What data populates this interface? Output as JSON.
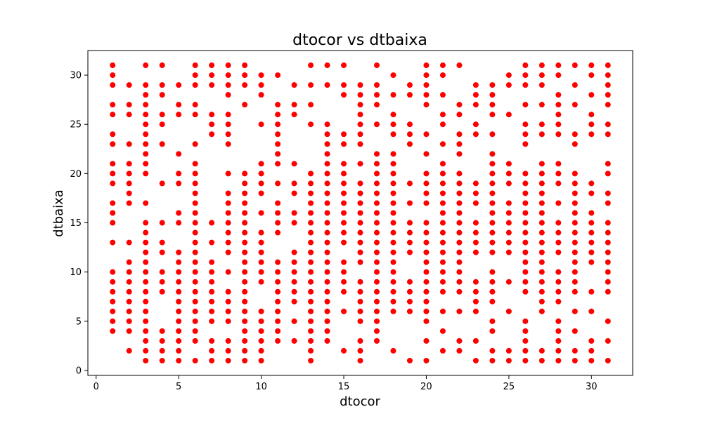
{
  "chart_data": {
    "type": "scatter",
    "title": "dtocor vs dtbaixa",
    "xlabel": "dtocor",
    "ylabel": "dtbaixa",
    "xlim": [
      -0.5,
      32.5
    ],
    "ylim": [
      -0.5,
      32.5
    ],
    "xticks": [
      0,
      5,
      10,
      15,
      20,
      25,
      30
    ],
    "yticks": [
      0,
      5,
      10,
      15,
      20,
      25,
      30
    ],
    "marker_color": "#ff0000",
    "grid": false,
    "points_by_x": {
      "1": [
        4,
        5,
        6,
        7,
        8,
        9,
        10,
        13,
        15,
        16,
        17,
        19,
        20,
        21,
        23,
        24,
        26,
        27,
        29,
        30,
        31
      ],
      "2": [
        2,
        4,
        5,
        6,
        7,
        8,
        9,
        10,
        11,
        13,
        17,
        18,
        19,
        20,
        21,
        23,
        26,
        27,
        29
      ],
      "3": [
        1,
        2,
        3,
        4,
        5,
        6,
        7,
        8,
        9,
        10,
        11,
        12,
        13,
        14,
        15,
        17,
        20,
        21,
        22,
        23,
        24,
        25,
        26,
        27,
        28,
        29,
        31
      ],
      "4": [
        1,
        2,
        3,
        4,
        8,
        9,
        10,
        12,
        13,
        15,
        19,
        23,
        25,
        26,
        28,
        29,
        31
      ],
      "5": [
        1,
        2,
        3,
        4,
        5,
        6,
        7,
        8,
        9,
        10,
        11,
        12,
        15,
        16,
        19,
        20,
        22,
        26,
        27,
        29
      ],
      "6": [
        1,
        3,
        4,
        5,
        6,
        7,
        8,
        9,
        10,
        11,
        12,
        13,
        14,
        15,
        16,
        17,
        18,
        19,
        20,
        21,
        23,
        26,
        27,
        29,
        30,
        31
      ],
      "7": [
        1,
        2,
        3,
        5,
        6,
        7,
        8,
        9,
        10,
        11,
        13,
        15,
        24,
        25,
        26,
        29,
        30,
        31
      ],
      "8": [
        1,
        2,
        3,
        5,
        6,
        7,
        8,
        10,
        12,
        13,
        14,
        15,
        16,
        17,
        18,
        20,
        23,
        24,
        25,
        26,
        28,
        29,
        30,
        31
      ],
      "9": [
        1,
        2,
        3,
        4,
        5,
        6,
        7,
        8,
        9,
        10,
        11,
        12,
        13,
        14,
        15,
        16,
        17,
        18,
        19,
        20,
        27,
        29,
        30,
        31
      ],
      "10": [
        1,
        2,
        3,
        4,
        5,
        6,
        9,
        10,
        11,
        12,
        13,
        14,
        16,
        18,
        19,
        20,
        21,
        25,
        28,
        29,
        30
      ],
      "11": [
        3,
        4,
        5,
        6,
        7,
        8,
        9,
        10,
        11,
        14,
        15,
        16,
        17,
        19,
        21,
        22,
        23,
        24,
        25,
        26,
        27,
        30
      ],
      "12": [
        3,
        5,
        7,
        8,
        9,
        10,
        11,
        12,
        15,
        16,
        18,
        19,
        21,
        26,
        27,
        29
      ],
      "13": [
        1,
        2,
        3,
        4,
        5,
        6,
        7,
        8,
        9,
        10,
        11,
        12,
        13,
        14,
        15,
        16,
        17,
        18,
        19,
        20,
        25,
        27,
        29,
        31
      ],
      "14": [
        3,
        4,
        5,
        6,
        7,
        8,
        9,
        10,
        11,
        12,
        13,
        14,
        15,
        16,
        17,
        18,
        19,
        20,
        21,
        22,
        23,
        24,
        25,
        29,
        31
      ],
      "15": [
        2,
        6,
        8,
        9,
        10,
        11,
        13,
        14,
        15,
        16,
        17,
        18,
        19,
        20,
        21,
        23,
        24,
        28,
        29,
        31
      ],
      "16": [
        1,
        2,
        3,
        5,
        6,
        7,
        8,
        9,
        11,
        12,
        13,
        14,
        15,
        16,
        17,
        18,
        19,
        21,
        23,
        24,
        25,
        26,
        27,
        28,
        29
      ],
      "17": [
        3,
        4,
        5,
        6,
        7,
        8,
        9,
        10,
        11,
        12,
        13,
        14,
        15,
        16,
        17,
        18,
        19,
        20,
        21,
        22,
        25,
        27,
        28,
        29,
        31
      ],
      "18": [
        2,
        6,
        7,
        8,
        9,
        10,
        11,
        12,
        13,
        14,
        15,
        16,
        17,
        18,
        19,
        20,
        21,
        22,
        24,
        25,
        26,
        28,
        30
      ],
      "19": [
        1,
        6,
        7,
        8,
        9,
        12,
        13,
        14,
        15,
        17,
        19,
        23,
        24,
        25,
        28,
        29
      ],
      "20": [
        1,
        3,
        5,
        6,
        7,
        8,
        9,
        10,
        11,
        12,
        13,
        14,
        15,
        17,
        18,
        19,
        20,
        22,
        24,
        27,
        28,
        29,
        30,
        31
      ],
      "21": [
        2,
        4,
        6,
        8,
        9,
        10,
        11,
        12,
        13,
        14,
        15,
        16,
        17,
        18,
        19,
        20,
        21,
        23,
        25,
        26,
        28,
        30,
        31
      ],
      "22": [
        2,
        3,
        6,
        8,
        9,
        10,
        11,
        12,
        13,
        14,
        15,
        16,
        17,
        18,
        19,
        20,
        22,
        23,
        24,
        26,
        27,
        31
      ],
      "23": [
        1,
        3,
        6,
        7,
        8,
        9,
        12,
        13,
        14,
        15,
        17,
        18,
        19,
        24,
        25,
        27,
        28,
        29
      ],
      "24": [
        1,
        2,
        4,
        5,
        7,
        8,
        9,
        10,
        12,
        13,
        14,
        15,
        16,
        17,
        18,
        19,
        20,
        21,
        22,
        24,
        26,
        27,
        28,
        29
      ],
      "25": [
        1,
        2,
        6,
        9,
        12,
        13,
        14,
        15,
        16,
        17,
        19,
        20,
        21,
        26,
        29,
        30
      ],
      "26": [
        1,
        2,
        3,
        4,
        5,
        8,
        9,
        10,
        11,
        12,
        13,
        14,
        15,
        16,
        17,
        18,
        19,
        20,
        23,
        24,
        25,
        27,
        29,
        30,
        31
      ],
      "27": [
        1,
        2,
        6,
        7,
        8,
        9,
        10,
        11,
        12,
        13,
        14,
        15,
        16,
        17,
        18,
        19,
        20,
        21,
        24,
        25,
        27,
        29,
        30,
        31
      ],
      "28": [
        1,
        2,
        3,
        4,
        5,
        7,
        8,
        9,
        10,
        12,
        13,
        14,
        15,
        17,
        19,
        20,
        21,
        24,
        25,
        26,
        27,
        28,
        30,
        31
      ],
      "29": [
        1,
        2,
        4,
        6,
        8,
        9,
        10,
        11,
        12,
        13,
        14,
        15,
        16,
        17,
        18,
        19,
        20,
        23,
        24,
        27,
        29,
        31
      ],
      "30": [
        1,
        2,
        3,
        6,
        8,
        11,
        12,
        13,
        14,
        15,
        16,
        18,
        19,
        24,
        25,
        26,
        28,
        30,
        31
      ],
      "31": [
        1,
        3,
        5,
        8,
        9,
        10,
        11,
        12,
        13,
        14,
        15,
        17,
        18,
        20,
        21,
        24,
        25,
        27,
        28,
        29,
        30,
        31
      ]
    }
  }
}
